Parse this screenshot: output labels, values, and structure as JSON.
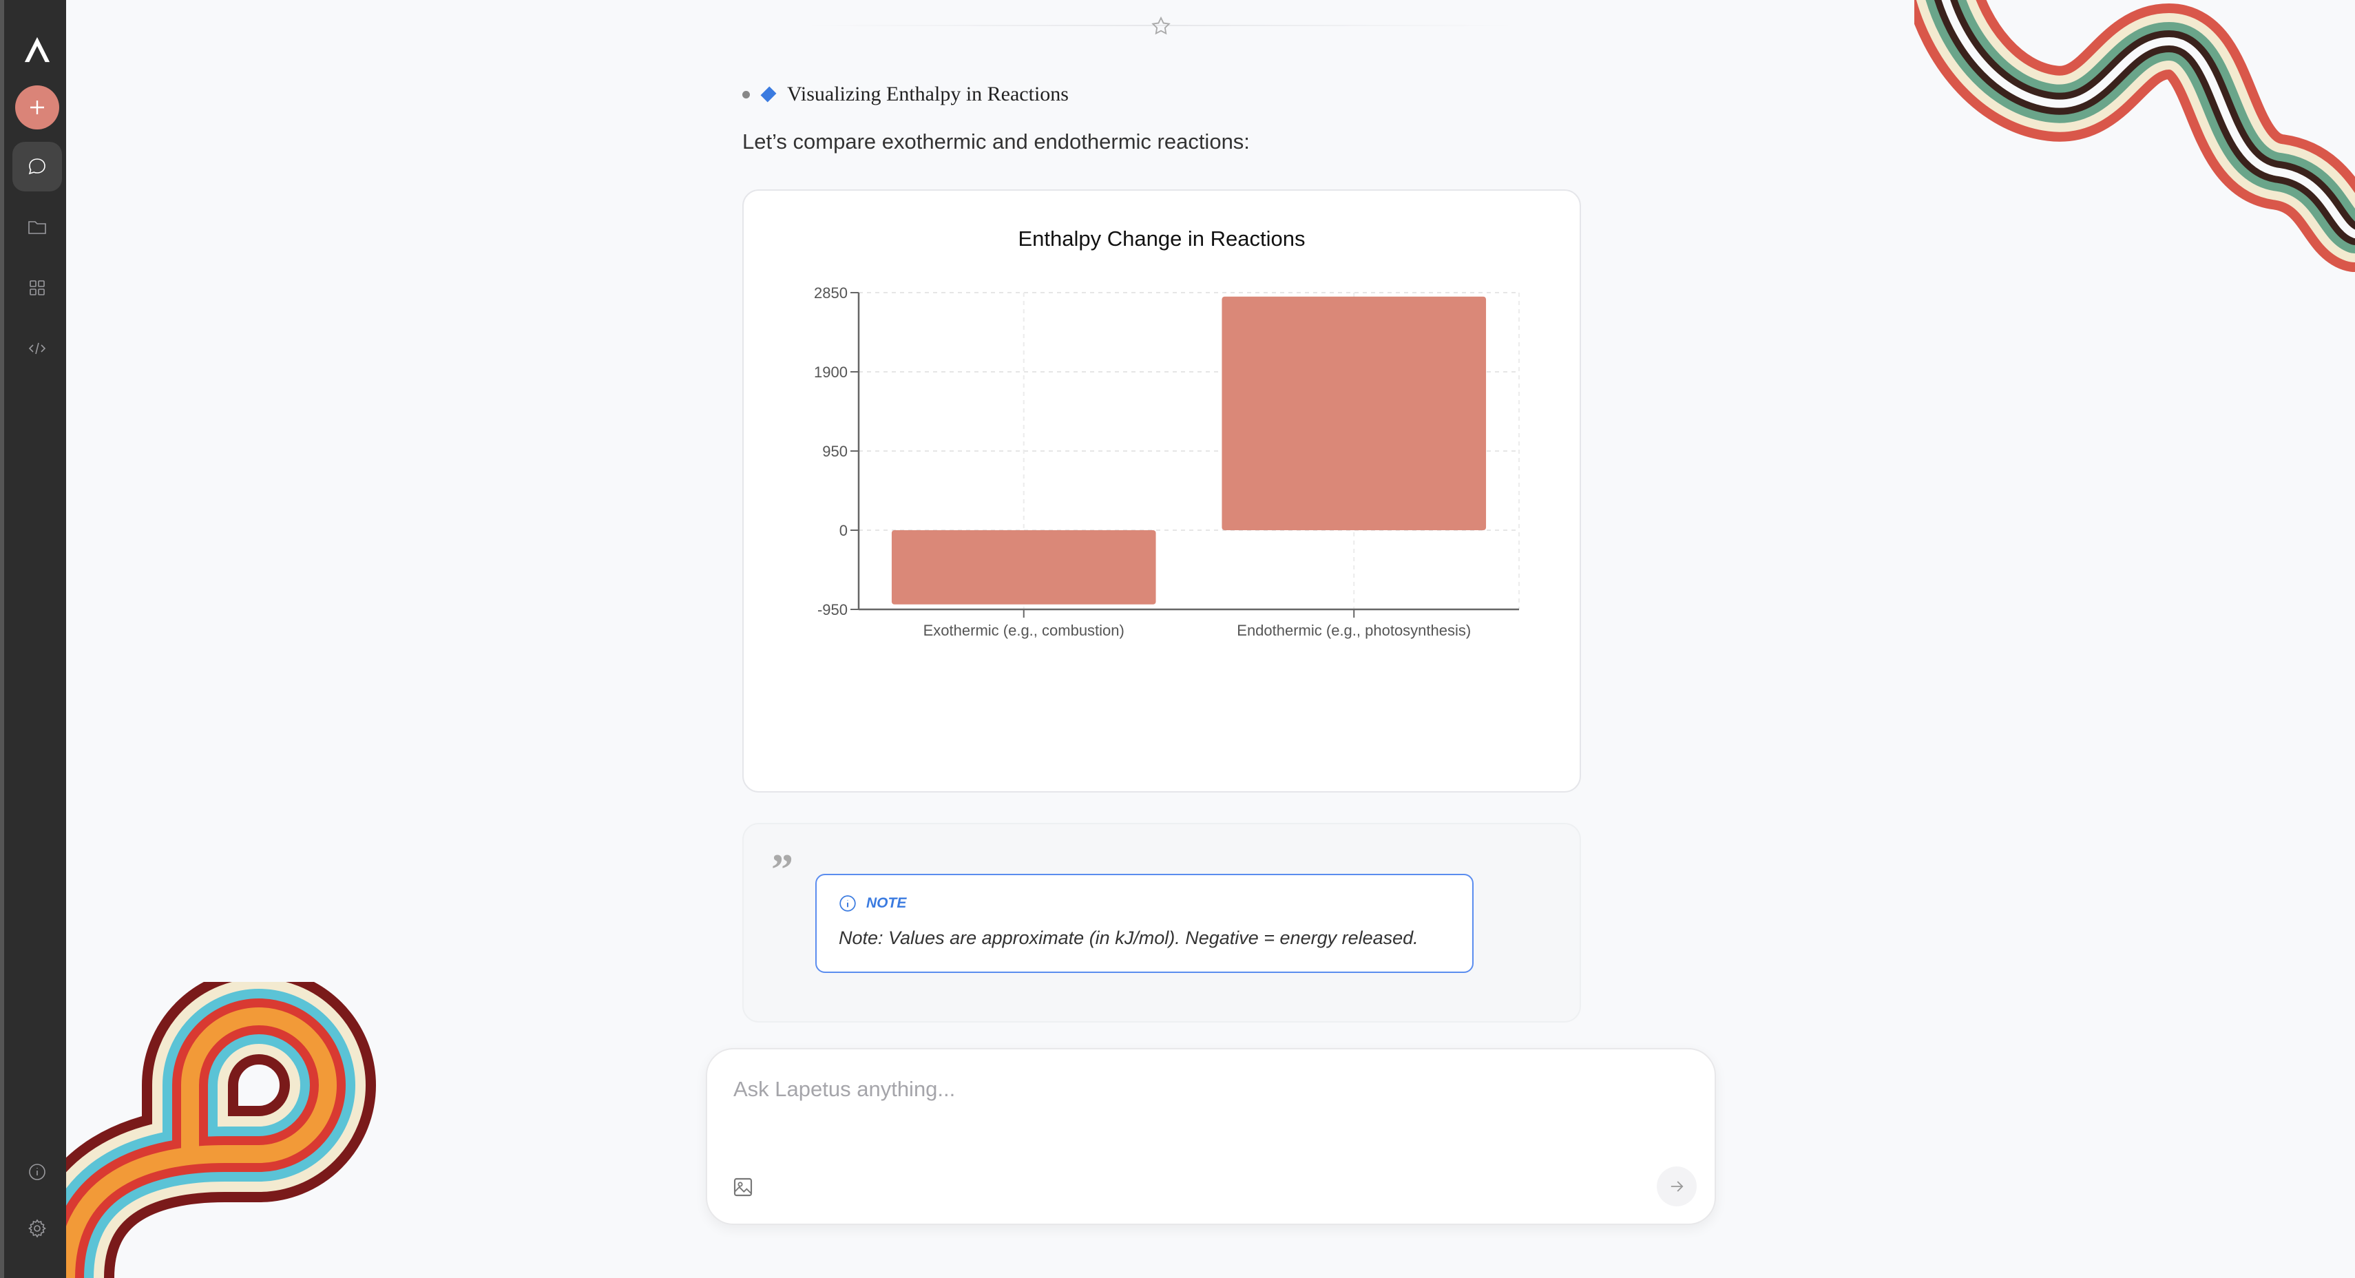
{
  "sidebar": {
    "items": [
      {
        "icon": "logo"
      },
      {
        "icon": "plus-icon",
        "label": "new"
      },
      {
        "icon": "chat-icon",
        "active": true
      },
      {
        "icon": "folder-icon"
      },
      {
        "icon": "grid-icon"
      },
      {
        "icon": "code-icon"
      },
      {
        "icon": "info-icon"
      },
      {
        "icon": "gear-icon"
      }
    ],
    "accent": "#da8478"
  },
  "message": {
    "heading": "Visualizing Enthalpy in Reactions",
    "intro": "Let’s compare exothermic and endothermic reactions:",
    "note": {
      "label": "NOTE",
      "text": "Note: Values are approximate (in kJ/mol). Negative = energy released."
    }
  },
  "chart_data": {
    "type": "bar",
    "title": "Enthalpy Change in Reactions",
    "categories": [
      "Exothermic (e.g., combustion)",
      "Endothermic (e.g., photosynthesis)"
    ],
    "values": [
      -890,
      2803
    ],
    "ylim": [
      -950,
      2850
    ],
    "yticks": [
      -950,
      0,
      950,
      1900,
      2850
    ],
    "grid": true,
    "color": "#da8878",
    "xlabel": "",
    "ylabel": ""
  },
  "input": {
    "placeholder": "Ask Lapetus anything..."
  }
}
